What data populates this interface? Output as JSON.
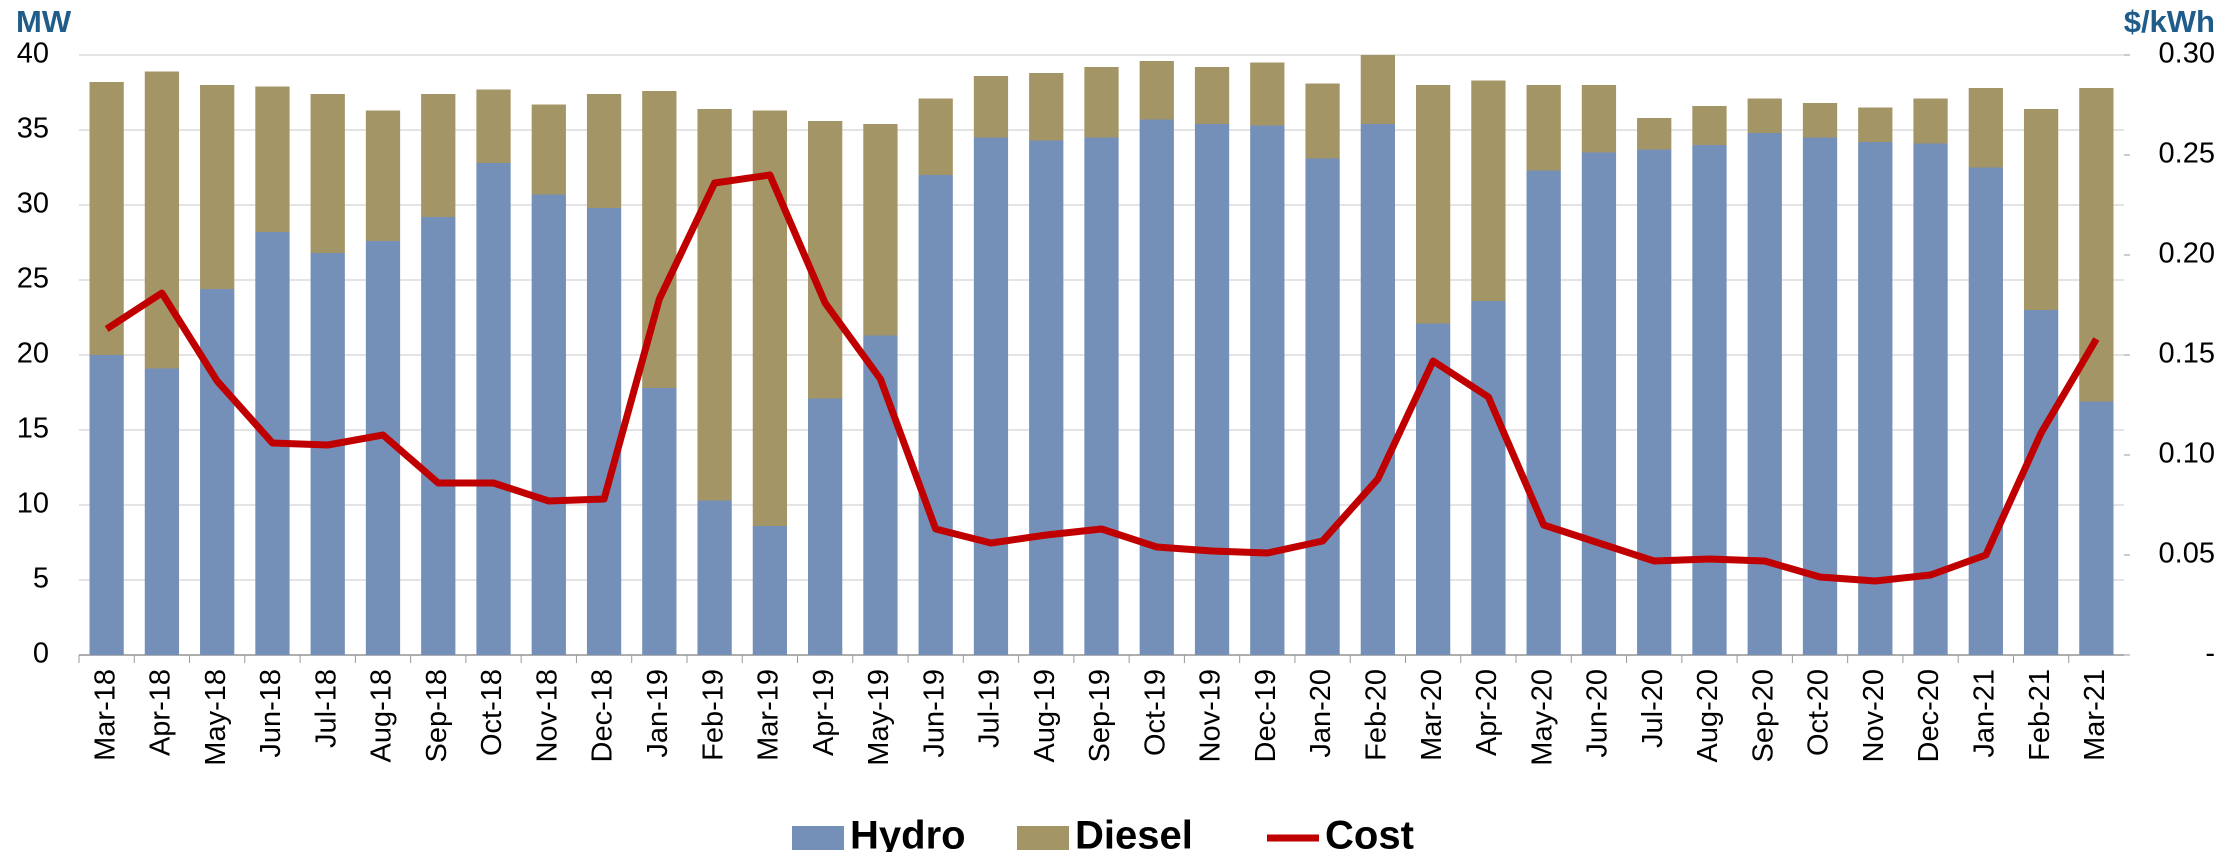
{
  "chart_data": {
    "type": "bar",
    "y_label": "MW",
    "y2_label": "$/kWh",
    "categories": [
      "Mar-18",
      "Apr-18",
      "May-18",
      "Jun-18",
      "Jul-18",
      "Aug-18",
      "Sep-18",
      "Oct-18",
      "Nov-18",
      "Dec-18",
      "Jan-19",
      "Feb-19",
      "Mar-19",
      "Apr-19",
      "May-19",
      "Jun-19",
      "Jul-19",
      "Aug-19",
      "Sep-19",
      "Oct-19",
      "Nov-19",
      "Dec-19",
      "Jan-20",
      "Feb-20",
      "Mar-20",
      "Apr-20",
      "May-20",
      "Jun-20",
      "Jul-20",
      "Aug-20",
      "Sep-20",
      "Oct-20",
      "Nov-20",
      "Dec-20",
      "Jan-21",
      "Feb-21",
      "Mar-21"
    ],
    "series": [
      {
        "name": "Hydro",
        "type": "bar",
        "color": "#7490b8",
        "values": [
          20,
          19.1,
          24.4,
          28.2,
          26.8,
          27.6,
          29.2,
          32.8,
          30.7,
          29.8,
          17.8,
          10.3,
          8.6,
          17.1,
          21.3,
          32,
          34.5,
          34.3,
          34.5,
          35.7,
          35.4,
          35.3,
          33.1,
          35.4,
          22.1,
          23.6,
          32.3,
          33.5,
          33.7,
          34,
          34.8,
          34.5,
          34.2,
          34.1,
          32.5,
          23,
          16.9
        ]
      },
      {
        "name": "Diesel",
        "type": "bar",
        "color": "#a49566",
        "values": [
          18.2,
          19.8,
          13.6,
          9.7,
          10.6,
          8.7,
          8.2,
          4.9,
          6,
          7.6,
          19.8,
          26.1,
          27.7,
          18.5,
          14.1,
          5.1,
          4.1,
          4.5,
          4.7,
          3.9,
          3.8,
          4.2,
          5,
          4.6,
          15.9,
          14.7,
          5.7,
          4.5,
          2.1,
          2.6,
          2.3,
          2.3,
          2.3,
          3,
          5.3,
          13.4,
          20.9
        ]
      },
      {
        "name": "Cost",
        "type": "line",
        "axis": "y2",
        "color": "#c00000",
        "values": [
          0.163,
          0.181,
          0.137,
          0.106,
          0.105,
          0.11,
          0.086,
          0.086,
          0.077,
          0.078,
          0.178,
          0.236,
          0.24,
          0.176,
          0.138,
          0.063,
          0.056,
          0.06,
          0.063,
          0.054,
          0.052,
          0.051,
          0.057,
          0.088,
          0.147,
          0.129,
          0.065,
          0.056,
          0.047,
          0.048,
          0.047,
          0.039,
          0.037,
          0.04,
          0.05,
          0.111,
          0.158
        ]
      }
    ],
    "ylim": [
      0,
      40
    ],
    "yticks": [
      0,
      5,
      10,
      15,
      20,
      25,
      30,
      35,
      40
    ],
    "y2lim": [
      0,
      0.3
    ],
    "y2ticks": [
      {
        "value": 0,
        "label": "-"
      },
      {
        "value": 0.05,
        "label": "0.05"
      },
      {
        "value": 0.1,
        "label": "0.10"
      },
      {
        "value": 0.15,
        "label": "0.15"
      },
      {
        "value": 0.2,
        "label": "0.20"
      },
      {
        "value": 0.25,
        "label": "0.25"
      },
      {
        "value": 0.3,
        "label": "0.30"
      }
    ],
    "grid": true,
    "legend": "bottom"
  }
}
